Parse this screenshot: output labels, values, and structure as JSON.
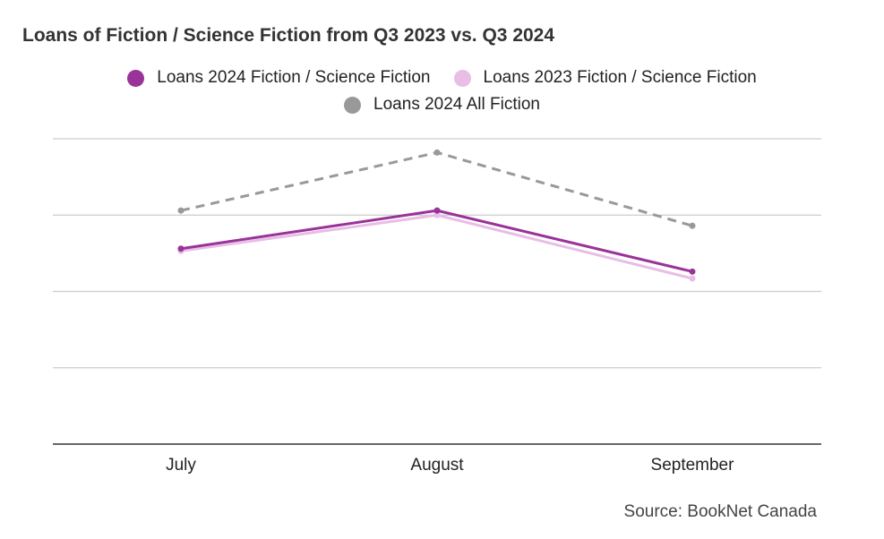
{
  "chart_data": {
    "type": "line",
    "title": "Loans of Fiction / Science Fiction from Q3 2023 vs. Q3 2024",
    "categories": [
      "July",
      "August",
      "September"
    ],
    "xlabel": "",
    "ylabel": "",
    "ylim": [
      0,
      4
    ],
    "grid": true,
    "y_tick_labels_shown": false,
    "legend_position": "top",
    "series": [
      {
        "name": "Loans 2024 Fiction / Science Fiction",
        "values": [
          2.56,
          3.06,
          2.26
        ],
        "color": "#993399",
        "dashed": false
      },
      {
        "name": "Loans 2023 Fiction / Science Fiction",
        "values": [
          2.53,
          3.0,
          2.17
        ],
        "color": "#e8bde6",
        "dashed": false
      },
      {
        "name": "Loans 2024 All Fiction",
        "values": [
          3.06,
          3.82,
          2.86
        ],
        "color": "#999999",
        "dashed": true
      }
    ],
    "source": "Source: BookNet Canada"
  }
}
